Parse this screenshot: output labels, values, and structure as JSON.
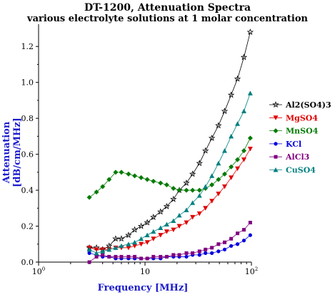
{
  "chart_data": {
    "type": "line",
    "title": "DT-1200, Attenuation Spectra",
    "subtitle": "various electrolyte solutions at 1 molar concentration",
    "xlabel": "Frequency [MHz]",
    "ylabel": "Attenuation [dB/cm/MHz]",
    "xscale": "log",
    "xlim": [
      1,
      100
    ],
    "ylim": [
      0,
      1.3
    ],
    "x_ticks": [
      {
        "base": "10",
        "exp": "0"
      },
      {
        "base": "10",
        "exp": ""
      },
      {
        "base": "10",
        "exp": "2"
      }
    ],
    "y_ticks": [
      "0.0",
      "0.2",
      "0.4",
      "0.6",
      "0.8",
      "1.0",
      "1.2"
    ],
    "y_tick_values": [
      0,
      0.2,
      0.4,
      0.6,
      0.8,
      1.0,
      1.2
    ],
    "legend_position": "right",
    "x": [
      3.0,
      3.5,
      4.0,
      4.6,
      5.3,
      6.0,
      7.0,
      8.0,
      9.2,
      10.5,
      12.0,
      14.0,
      16.0,
      18.5,
      21.0,
      24.5,
      28.0,
      32.5,
      37.0,
      42.5,
      49.0,
      56.0,
      64.5,
      74.0,
      85.0,
      97.5
    ],
    "series": [
      {
        "name": "Al2(SO4)3",
        "color": "#000000",
        "marker": "star",
        "values": [
          0.08,
          0.08,
          0.07,
          0.09,
          0.13,
          0.13,
          0.15,
          0.18,
          0.2,
          0.22,
          0.25,
          0.28,
          0.31,
          0.35,
          0.4,
          0.44,
          0.49,
          0.55,
          0.62,
          0.69,
          0.76,
          0.84,
          0.93,
          1.02,
          1.14,
          1.28
        ]
      },
      {
        "name": "MgSO4",
        "color": "#e00000",
        "marker": "triangle-down",
        "values": [
          0.08,
          0.07,
          0.07,
          0.07,
          0.08,
          0.08,
          0.08,
          0.09,
          0.1,
          0.11,
          0.13,
          0.15,
          0.17,
          0.18,
          0.2,
          0.22,
          0.25,
          0.27,
          0.3,
          0.34,
          0.38,
          0.42,
          0.47,
          0.52,
          0.57,
          0.63
        ]
      },
      {
        "name": "MnSO4",
        "color": "#007a00",
        "marker": "diamond",
        "values": [
          0.36,
          0.39,
          0.42,
          0.46,
          0.5,
          0.5,
          0.49,
          0.48,
          0.47,
          0.46,
          0.45,
          0.44,
          0.43,
          0.41,
          0.4,
          0.4,
          0.4,
          0.4,
          0.41,
          0.43,
          0.46,
          0.49,
          0.53,
          0.57,
          0.62,
          0.69
        ]
      },
      {
        "name": "KCl",
        "color": "#0000e0",
        "marker": "circle",
        "values": [
          0.05,
          0.04,
          0.03,
          0.03,
          0.02,
          0.02,
          0.02,
          0.02,
          0.02,
          0.02,
          0.02,
          0.02,
          0.03,
          0.03,
          0.03,
          0.03,
          0.04,
          0.04,
          0.05,
          0.05,
          0.06,
          0.07,
          0.09,
          0.1,
          0.12,
          0.15
        ]
      },
      {
        "name": "AlCl3",
        "color": "#800080",
        "marker": "square",
        "values": [
          0.0,
          0.03,
          0.04,
          0.03,
          0.03,
          0.03,
          0.03,
          0.03,
          0.02,
          0.02,
          0.03,
          0.03,
          0.03,
          0.04,
          0.04,
          0.05,
          0.05,
          0.06,
          0.07,
          0.08,
          0.1,
          0.11,
          0.13,
          0.16,
          0.18,
          0.22
        ]
      },
      {
        "name": "CuSO4",
        "color": "#008080",
        "marker": "triangle-up",
        "values": [
          0.07,
          0.05,
          0.06,
          0.07,
          0.08,
          0.09,
          0.1,
          0.11,
          0.13,
          0.15,
          0.17,
          0.19,
          0.21,
          0.23,
          0.26,
          0.29,
          0.33,
          0.37,
          0.42,
          0.48,
          0.55,
          0.62,
          0.7,
          0.77,
          0.84,
          0.94
        ]
      }
    ]
  }
}
